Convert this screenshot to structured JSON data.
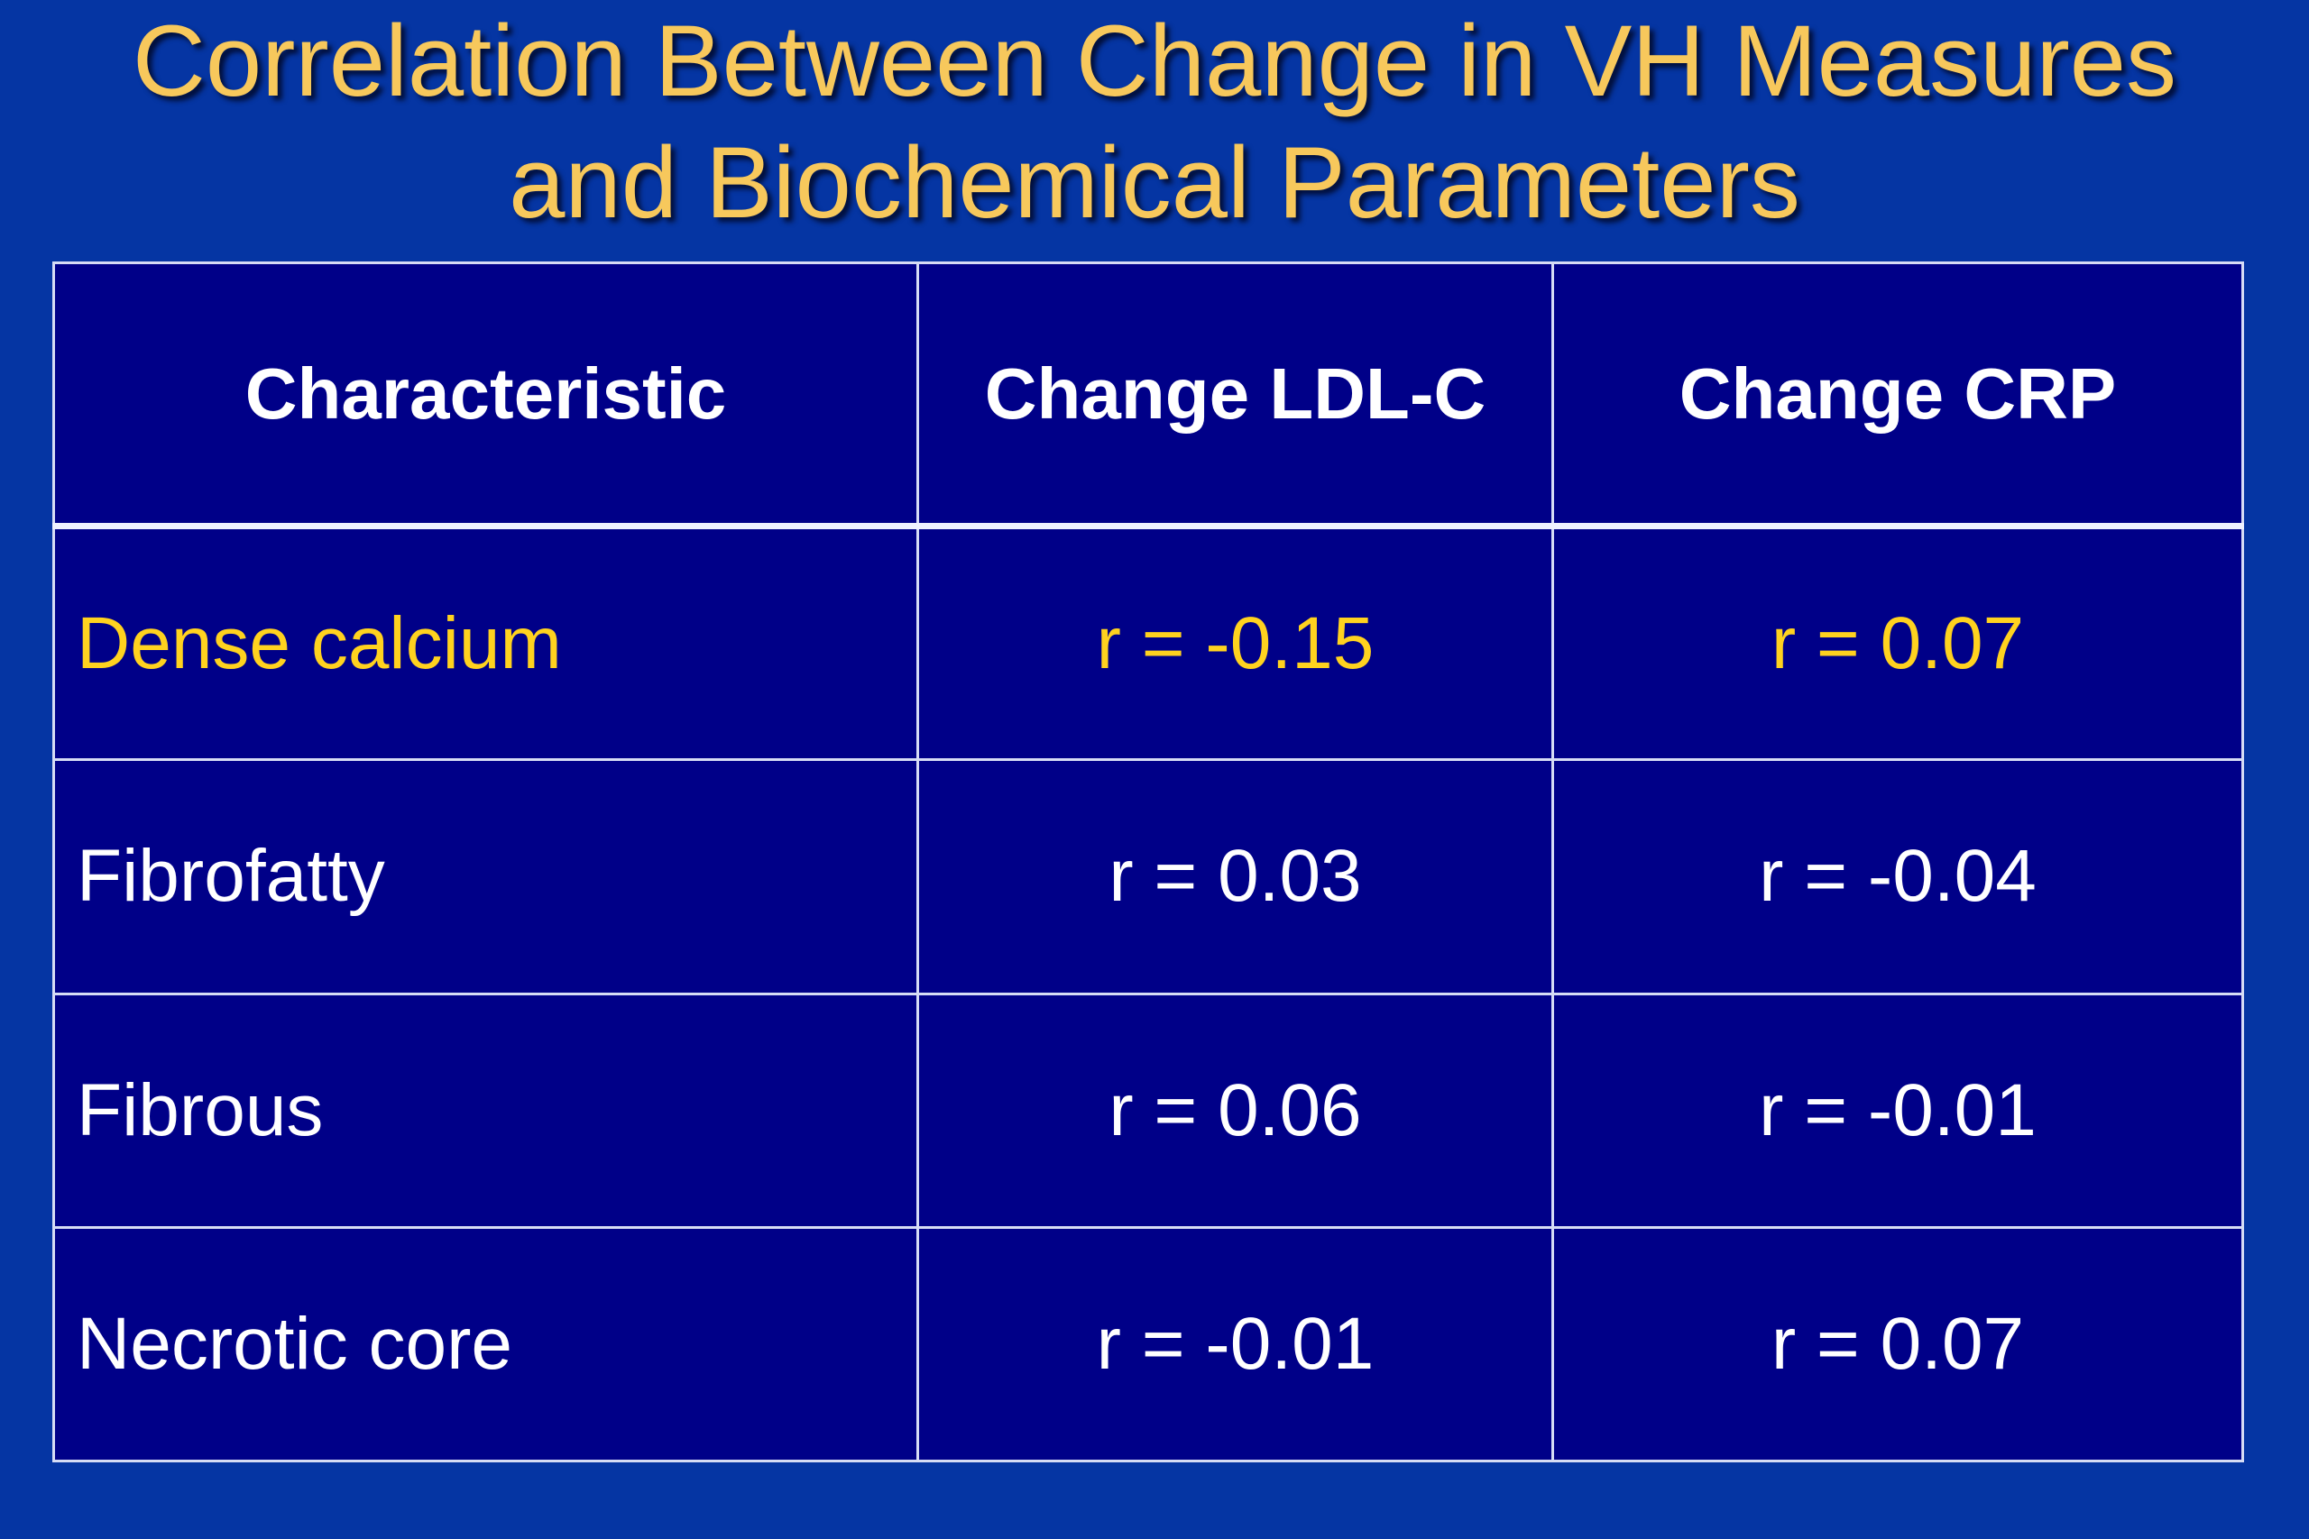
{
  "title": {
    "line1": "Correlation Between Change in VH Measures",
    "line2": "and Biochemical Parameters"
  },
  "table": {
    "headers": [
      "Characteristic",
      "Change LDL-C",
      "Change CRP"
    ],
    "rows": [
      {
        "characteristic": "Dense calcium",
        "ldl": "r = -0.15",
        "crp": "r = 0.07"
      },
      {
        "characteristic": "Fibrofatty",
        "ldl": "r = 0.03",
        "crp": "r = -0.04"
      },
      {
        "characteristic": "Fibrous",
        "ldl": "r = 0.06",
        "crp": "r = -0.01"
      },
      {
        "characteristic": "Necrotic core",
        "ldl": "r = -0.01",
        "crp": "r = 0.07"
      }
    ]
  },
  "colors": {
    "background": "#0535a3",
    "table_fill": "#000088",
    "title_text": "#f7c85c",
    "highlight_text": "#ffd21f",
    "body_text": "#ffffff"
  }
}
